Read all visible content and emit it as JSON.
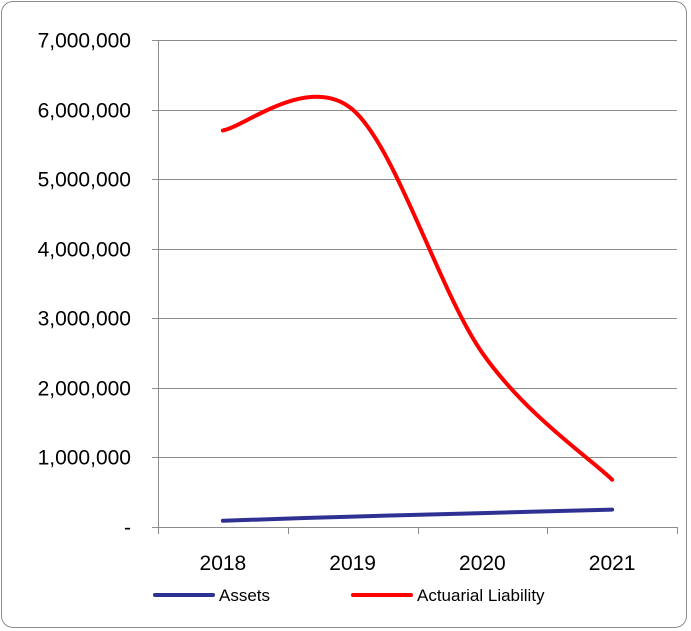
{
  "chart_data": {
    "type": "line",
    "categories": [
      "2018",
      "2019",
      "2020",
      "2021"
    ],
    "ylim": [
      0,
      7000000
    ],
    "y_ticks": [
      {
        "value": 0,
        "label": "-"
      },
      {
        "value": 1000000,
        "label": "1,000,000"
      },
      {
        "value": 2000000,
        "label": "2,000,000"
      },
      {
        "value": 3000000,
        "label": "3,000,000"
      },
      {
        "value": 4000000,
        "label": "4,000,000"
      },
      {
        "value": 5000000,
        "label": "5,000,000"
      },
      {
        "value": 6000000,
        "label": "6,000,000"
      },
      {
        "value": 7000000,
        "label": "7,000,000"
      }
    ],
    "grid": true,
    "smooth": true,
    "legend_position": "bottom",
    "series": [
      {
        "name": "Assets",
        "color": "#2e3192",
        "values": [
          90000,
          150000,
          200000,
          250000
        ]
      },
      {
        "name": "Actuarial Liability",
        "color": "#ff0000",
        "values": [
          5700000,
          6000000,
          2500000,
          680000
        ]
      }
    ]
  }
}
